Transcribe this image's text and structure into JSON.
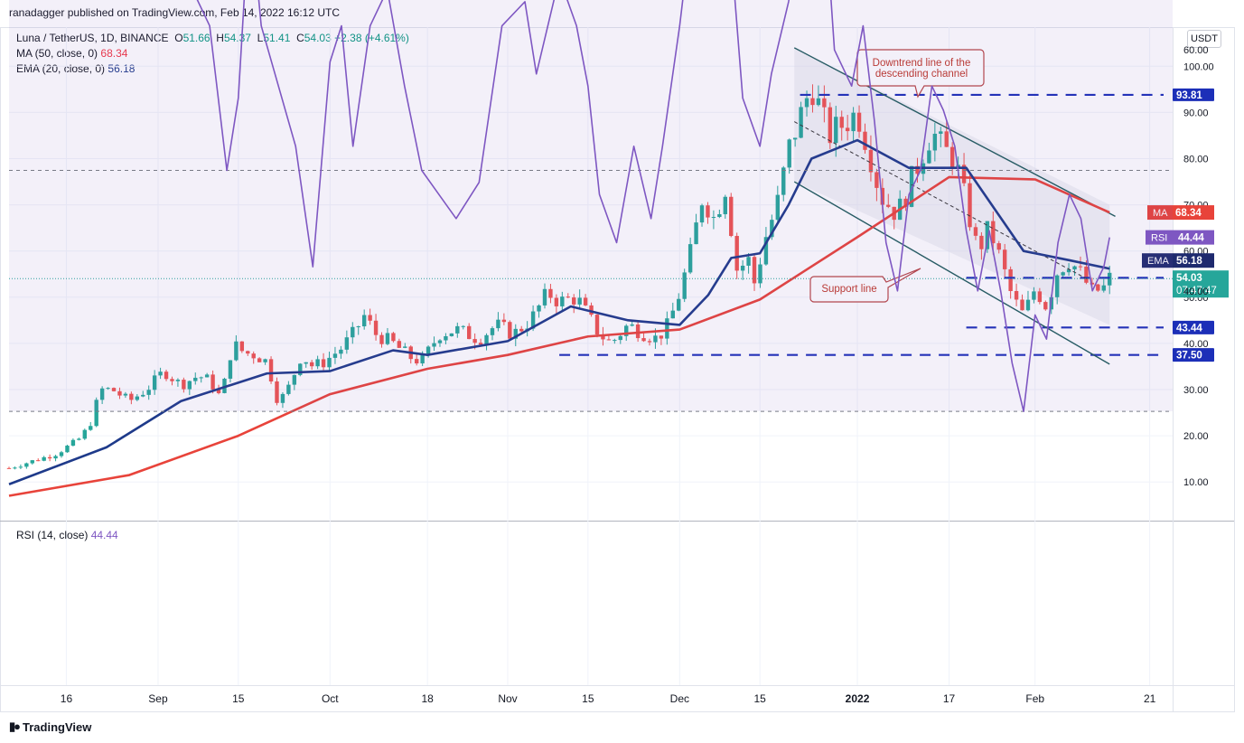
{
  "header": {
    "publisher": "ranadagger published on TradingView.com, Feb 14, 2022 16:12 UTC",
    "symbol": "Luna / TetherUS, 1D, BINANCE",
    "ohlc": {
      "o_label": "O",
      "o": "51.66",
      "h_label": "H",
      "h": "54.37",
      "l_label": "L",
      "l": "51.41",
      "c_label": "C",
      "c": "54.03",
      "chg": "+2.38 (+4.61%)"
    },
    "ma_label": "MA (50, close, 0)",
    "ma_value": "68.34",
    "ema_label": "EMA (20, close, 0)",
    "ema_value": "56.18",
    "currency": "USDT"
  },
  "footer": {
    "brand": "TradingView"
  },
  "colors": {
    "up": "#26a69a",
    "down": "#ef5350",
    "ma": "#e8433a",
    "ema": "#1e3a8a",
    "rsi": "#7e57c2",
    "hline": "#1c2fb8",
    "channel": "#1f5c5c"
  },
  "chart_data": [
    {
      "type": "candlestick",
      "ylim": [
        0,
        105
      ],
      "y_ticks": [
        10,
        20,
        30,
        40,
        50,
        60,
        70,
        80,
        90,
        100
      ],
      "y_tick_labels": [
        "10.00",
        "20.00",
        "30.00",
        "40.00",
        "50.00",
        "60.00",
        "70.00",
        "80.00",
        "90.00",
        "100.00"
      ],
      "x_tick_labels": [
        "16",
        "Sep",
        "15",
        "Oct",
        "18",
        "Nov",
        "15",
        "Dec",
        "15",
        "2022",
        "17",
        "Feb",
        "21"
      ],
      "x_tick_dates": [
        "2021-08-16",
        "2021-09-01",
        "2021-09-15",
        "2021-10-01",
        "2021-10-18",
        "2021-11-01",
        "2021-11-15",
        "2021-12-01",
        "2021-12-15",
        "2022-01-01",
        "2022-01-17",
        "2022-02-01",
        "2022-02-21"
      ],
      "x_range": [
        "2021-08-06",
        "2022-02-25"
      ],
      "close_series": [
        [
          "2021-08-06",
          13.0
        ],
        [
          "2021-08-10",
          14.5
        ],
        [
          "2021-08-14",
          16.0
        ],
        [
          "2021-08-18",
          19.0
        ],
        [
          "2021-08-20",
          22.0
        ],
        [
          "2021-08-22",
          30.0
        ],
        [
          "2021-08-24",
          30.0
        ],
        [
          "2021-08-27",
          27.5
        ],
        [
          "2021-08-30",
          30.0
        ],
        [
          "2021-09-02",
          34.0
        ],
        [
          "2021-09-05",
          31.0
        ],
        [
          "2021-09-08",
          33.0
        ],
        [
          "2021-09-10",
          32.0
        ],
        [
          "2021-09-12",
          28.0
        ],
        [
          "2021-09-14",
          40.0
        ],
        [
          "2021-09-16",
          38.0
        ],
        [
          "2021-09-18",
          37.5
        ],
        [
          "2021-09-20",
          36.0
        ],
        [
          "2021-09-22",
          27.0
        ],
        [
          "2021-09-24",
          31.0
        ],
        [
          "2021-09-26",
          37.5
        ],
        [
          "2021-09-28",
          35.0
        ],
        [
          "2021-09-30",
          36.0
        ],
        [
          "2021-10-03",
          39.0
        ],
        [
          "2021-10-05",
          42.0
        ],
        [
          "2021-10-07",
          46.0
        ],
        [
          "2021-10-09",
          42.0
        ],
        [
          "2021-10-12",
          40.0
        ],
        [
          "2021-10-15",
          37.0
        ],
        [
          "2021-10-17",
          36.0
        ],
        [
          "2021-10-20",
          42.0
        ],
        [
          "2021-10-23",
          43.0
        ],
        [
          "2021-10-27",
          41.0
        ],
        [
          "2021-10-30",
          44.0
        ],
        [
          "2021-11-02",
          42.0
        ],
        [
          "2021-11-05",
          45.0
        ],
        [
          "2021-11-08",
          51.0
        ],
        [
          "2021-11-10",
          49.0
        ],
        [
          "2021-11-13",
          50.0
        ],
        [
          "2021-11-15",
          46.0
        ],
        [
          "2021-11-17",
          42.0
        ],
        [
          "2021-11-19",
          40.0
        ],
        [
          "2021-11-22",
          44.0
        ],
        [
          "2021-11-25",
          42.0
        ],
        [
          "2021-11-27",
          41.0
        ],
        [
          "2021-11-29",
          44.0
        ],
        [
          "2021-12-01",
          51.0
        ],
        [
          "2021-12-03",
          60.0
        ],
        [
          "2021-12-05",
          72.0
        ],
        [
          "2021-12-07",
          67.0
        ],
        [
          "2021-12-09",
          74.0
        ],
        [
          "2021-12-11",
          56.0
        ],
        [
          "2021-12-13",
          58.0
        ],
        [
          "2021-12-14",
          53.0
        ],
        [
          "2021-12-16",
          63.0
        ],
        [
          "2021-12-18",
          70.0
        ],
        [
          "2021-12-20",
          82.0
        ],
        [
          "2021-12-22",
          89.0
        ],
        [
          "2021-12-24",
          96.0
        ],
        [
          "2021-12-27",
          85.0
        ],
        [
          "2021-12-30",
          88.0
        ],
        [
          "2022-01-01",
          90.0
        ],
        [
          "2022-01-03",
          82.0
        ],
        [
          "2022-01-05",
          72.0
        ],
        [
          "2022-01-08",
          68.0
        ],
        [
          "2022-01-10",
          74.0
        ],
        [
          "2022-01-12",
          80.0
        ],
        [
          "2022-01-14",
          86.0
        ],
        [
          "2022-01-16",
          82.0
        ],
        [
          "2022-01-18",
          80.0
        ],
        [
          "2022-01-20",
          70.0
        ],
        [
          "2022-01-22",
          60.0
        ],
        [
          "2022-01-24",
          65.0
        ],
        [
          "2022-01-26",
          58.0
        ],
        [
          "2022-01-28",
          50.0
        ],
        [
          "2022-01-30",
          46.0
        ],
        [
          "2022-02-01",
          52.0
        ],
        [
          "2022-02-03",
          48.0
        ],
        [
          "2022-02-05",
          56.0
        ],
        [
          "2022-02-07",
          58.0
        ],
        [
          "2022-02-09",
          55.0
        ],
        [
          "2022-02-11",
          51.0
        ],
        [
          "2022-02-13",
          52.0
        ],
        [
          "2022-02-14",
          54.03
        ]
      ],
      "series": [
        {
          "name": "MA (50, close, 0)",
          "last": 68.34,
          "points": [
            [
              "2021-08-06",
              7.0
            ],
            [
              "2021-08-27",
              11.5
            ],
            [
              "2021-09-15",
              20.0
            ],
            [
              "2021-10-01",
              29.0
            ],
            [
              "2021-10-18",
              34.5
            ],
            [
              "2021-11-01",
              37.5
            ],
            [
              "2021-11-15",
              41.5
            ],
            [
              "2021-12-01",
              43.0
            ],
            [
              "2021-12-15",
              49.5
            ],
            [
              "2022-01-01",
              63.0
            ],
            [
              "2022-01-17",
              76.0
            ],
            [
              "2022-02-01",
              75.5
            ],
            [
              "2022-02-14",
              68.34
            ]
          ]
        },
        {
          "name": "EMA (20, close, 0)",
          "last": 56.18,
          "points": [
            [
              "2021-08-06",
              9.5
            ],
            [
              "2021-08-23",
              17.5
            ],
            [
              "2021-09-05",
              27.5
            ],
            [
              "2021-09-20",
              33.5
            ],
            [
              "2021-10-01",
              34.0
            ],
            [
              "2021-10-12",
              38.5
            ],
            [
              "2021-10-18",
              37.5
            ],
            [
              "2021-11-01",
              40.5
            ],
            [
              "2021-11-12",
              48.0
            ],
            [
              "2021-11-22",
              45.0
            ],
            [
              "2021-12-01",
              44.0
            ],
            [
              "2021-12-06",
              50.5
            ],
            [
              "2021-12-10",
              58.5
            ],
            [
              "2021-12-15",
              59.5
            ],
            [
              "2021-12-20",
              70.0
            ],
            [
              "2021-12-24",
              80.0
            ],
            [
              "2022-01-01",
              84.0
            ],
            [
              "2022-01-10",
              78.0
            ],
            [
              "2022-01-20",
              78.0
            ],
            [
              "2022-01-30",
              60.0
            ],
            [
              "2022-02-07",
              58.0
            ],
            [
              "2022-02-14",
              56.18
            ]
          ]
        }
      ],
      "price_labels": [
        {
          "text": "93.81",
          "value": 93.81
        },
        {
          "text": "MA",
          "value": 68.34
        },
        {
          "text": "EMA",
          "value": 56.18
        },
        {
          "text": "54.20",
          "value": 54.2
        },
        {
          "text": "54.03",
          "text2": "07:47:47",
          "value": 54.03
        },
        {
          "text": "43.44",
          "value": 43.44
        },
        {
          "text": "37.50",
          "value": 37.5
        }
      ],
      "horizontal_levels": [
        {
          "value": 93.81,
          "from": "2021-12-22",
          "to": "2022-02-25"
        },
        {
          "value": 54.2,
          "from": "2022-01-20",
          "to": "2022-02-25"
        },
        {
          "value": 43.44,
          "from": "2022-01-20",
          "to": "2022-02-25"
        },
        {
          "value": 37.5,
          "from": "2021-11-10",
          "to": "2022-02-25"
        }
      ],
      "channel": {
        "upper": [
          [
            "2021-12-21",
            104.0
          ],
          [
            "2022-02-15",
            67.5
          ]
        ],
        "lower": [
          [
            "2021-12-21",
            75.0
          ],
          [
            "2022-02-14",
            35.5
          ]
        ],
        "mid": [
          [
            "2021-12-21",
            88.0
          ],
          [
            "2022-02-10",
            54.0
          ]
        ]
      },
      "annotations": [
        {
          "text": "Downtrend line of the descending channel",
          "lines": [
            "Downtrend line of the",
            "descending channel"
          ]
        },
        {
          "text": "Support line",
          "lines": [
            "Support line"
          ]
        }
      ]
    },
    {
      "type": "line",
      "title": "RSI (14, close)",
      "value": "44.44",
      "label": "RSI",
      "ylim": [
        27,
        97
      ],
      "y_ticks": [
        40,
        60,
        80
      ],
      "y_tick_labels": [
        "40.00",
        "60.00",
        "80.00"
      ],
      "band": [
        30,
        70
      ],
      "mid": 50,
      "points": [
        [
          "2021-08-06",
          85
        ],
        [
          "2021-08-10",
          82
        ],
        [
          "2021-08-12",
          82
        ],
        [
          "2021-08-13",
          69
        ],
        [
          "2021-08-15",
          78
        ],
        [
          "2021-08-18",
          75
        ],
        [
          "2021-08-20",
          82
        ],
        [
          "2021-08-23",
          93
        ],
        [
          "2021-08-25",
          88
        ],
        [
          "2021-08-27",
          72
        ],
        [
          "2021-08-29",
          76
        ],
        [
          "2021-09-01",
          73
        ],
        [
          "2021-09-03",
          65
        ],
        [
          "2021-09-05",
          73
        ],
        [
          "2021-09-07",
          65
        ],
        [
          "2021-09-10",
          62
        ],
        [
          "2021-09-13",
          50
        ],
        [
          "2021-09-15",
          56
        ],
        [
          "2021-09-17",
          72
        ],
        [
          "2021-09-19",
          62
        ],
        [
          "2021-09-22",
          57
        ],
        [
          "2021-09-25",
          52
        ],
        [
          "2021-09-28",
          42
        ],
        [
          "2021-10-01",
          59
        ],
        [
          "2021-10-03",
          62
        ],
        [
          "2021-10-05",
          52
        ],
        [
          "2021-10-08",
          62
        ],
        [
          "2021-10-11",
          65
        ],
        [
          "2021-10-14",
          57
        ],
        [
          "2021-10-17",
          50
        ],
        [
          "2021-10-20",
          48
        ],
        [
          "2021-10-23",
          46
        ],
        [
          "2021-10-27",
          49
        ],
        [
          "2021-10-31",
          62
        ],
        [
          "2021-11-04",
          64
        ],
        [
          "2021-11-06",
          58
        ],
        [
          "2021-11-10",
          66
        ],
        [
          "2021-11-13",
          62
        ],
        [
          "2021-11-15",
          57
        ],
        [
          "2021-11-17",
          48
        ],
        [
          "2021-11-20",
          44
        ],
        [
          "2021-11-23",
          52
        ],
        [
          "2021-11-26",
          46
        ],
        [
          "2021-11-28",
          52
        ],
        [
          "2021-12-01",
          62
        ],
        [
          "2021-12-03",
          70
        ],
        [
          "2021-12-05",
          72
        ],
        [
          "2021-12-07",
          66
        ],
        [
          "2021-12-10",
          68
        ],
        [
          "2021-12-12",
          56
        ],
        [
          "2021-12-15",
          52
        ],
        [
          "2021-12-17",
          58
        ],
        [
          "2021-12-20",
          64
        ],
        [
          "2021-12-23",
          72
        ],
        [
          "2021-12-26",
          74
        ],
        [
          "2021-12-28",
          60
        ],
        [
          "2021-12-31",
          57
        ],
        [
          "2022-01-02",
          62
        ],
        [
          "2022-01-04",
          54
        ],
        [
          "2022-01-06",
          44
        ],
        [
          "2022-01-08",
          40
        ],
        [
          "2022-01-10",
          48
        ],
        [
          "2022-01-12",
          50
        ],
        [
          "2022-01-14",
          57
        ],
        [
          "2022-01-16",
          55
        ],
        [
          "2022-01-18",
          52
        ],
        [
          "2022-01-20",
          45
        ],
        [
          "2022-01-22",
          40
        ],
        [
          "2022-01-24",
          45
        ],
        [
          "2022-01-26",
          40
        ],
        [
          "2022-01-28",
          34
        ],
        [
          "2022-01-30",
          30
        ],
        [
          "2022-02-01",
          38
        ],
        [
          "2022-02-03",
          36
        ],
        [
          "2022-02-05",
          44
        ],
        [
          "2022-02-07",
          48
        ],
        [
          "2022-02-09",
          46
        ],
        [
          "2022-02-11",
          40
        ],
        [
          "2022-02-13",
          42
        ],
        [
          "2022-02-14",
          44.44
        ]
      ]
    }
  ]
}
